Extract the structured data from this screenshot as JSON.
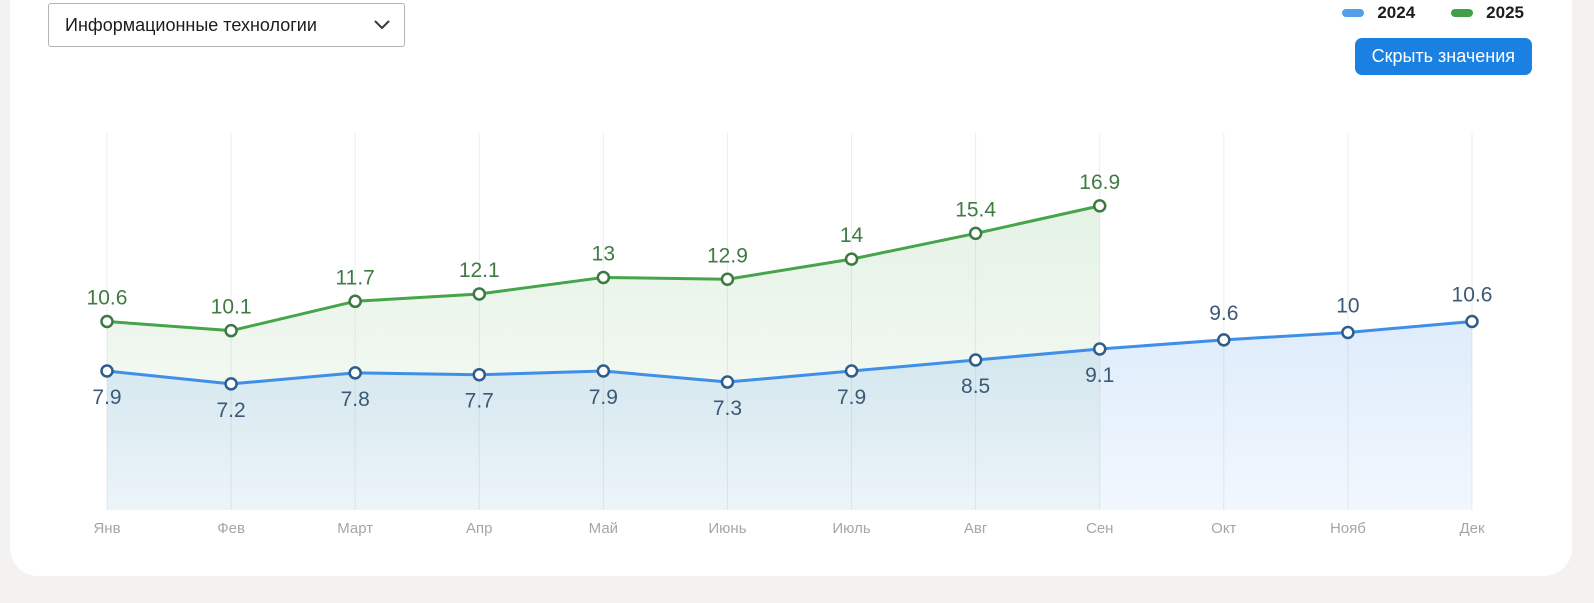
{
  "filter": {
    "selected_category": "Информационные технологии"
  },
  "legend": [
    {
      "label": "2024",
      "color": "#54a0e8"
    },
    {
      "label": "2025",
      "color": "#43a047"
    }
  ],
  "toolbar": {
    "hide_values_label": "Скрыть значения",
    "button_color": "#1a80e2"
  },
  "chart_data": {
    "type": "line",
    "categories": [
      "Янв",
      "Фев",
      "Март",
      "Апр",
      "Май",
      "Июнь",
      "Июль",
      "Авг",
      "Сен",
      "Окт",
      "Нояб",
      "Дек"
    ],
    "series": [
      {
        "name": "2024",
        "color": "#3f8ee8",
        "marker_stroke": "#2e5d8a",
        "label_color": "#3c5977",
        "values": [
          7.9,
          7.2,
          7.8,
          7.7,
          7.9,
          7.3,
          7.9,
          8.5,
          9.1,
          9.6,
          10,
          10.6
        ]
      },
      {
        "name": "2025",
        "color": "#46a44b",
        "marker_stroke": "#3c7a42",
        "label_color": "#3f7b42",
        "values": [
          10.6,
          10.1,
          11.7,
          12.1,
          13,
          12.9,
          14,
          15.4,
          16.9
        ]
      }
    ],
    "value_labels_visible": true,
    "grid": "vertical-only",
    "gridline_color": "#ededed",
    "axis_label_color": "#a6a6a6",
    "legend_position": "top-right",
    "ylim_approx": [
      0,
      18
    ]
  }
}
